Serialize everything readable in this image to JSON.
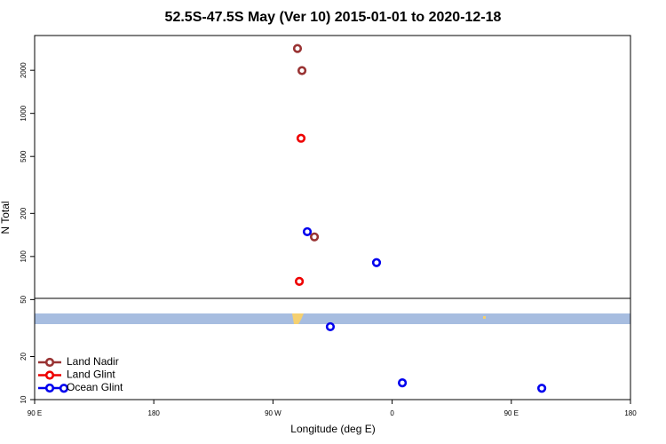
{
  "chart_data": {
    "type": "scatter",
    "title": "52.5S-47.5S May (Ver 10)   2015-01-01 to 2020-12-18",
    "xlabel": "Longitude (deg E)",
    "ylabel": "N Total",
    "xlim": [
      90,
      540
    ],
    "xticks": [
      {
        "value": 90,
        "label": "90 E"
      },
      180,
      {
        "value": 270,
        "label": "90 W"
      },
      {
        "value": 360,
        "label": "0"
      },
      {
        "value": 450,
        "label": "90 E"
      },
      {
        "value": 540,
        "label": "180"
      }
    ],
    "ylim": [
      10,
      3500
    ],
    "yscale": "log",
    "yticks": [
      10,
      20,
      50,
      100,
      200,
      500,
      1000,
      2000
    ],
    "legend": "bottom left",
    "series": [
      {
        "name": "Land Nadir",
        "color": "#993333",
        "x": [
          288.5,
          291.9,
          301.3
        ],
        "values": [
          2840,
          1990,
          137
        ]
      },
      {
        "name": "Land Glint",
        "color": "#ee0000",
        "x": [
          291.2,
          289.9
        ],
        "values": [
          670,
          67
        ]
      },
      {
        "name": "Ocean Glint",
        "color": "#0000ee",
        "x": [
          295.9,
          348.2,
          313.3,
          367.7,
          473,
          112.1
        ],
        "values": [
          149,
          90.6,
          32.3,
          13.1,
          12.0,
          12.0
        ]
      }
    ]
  }
}
